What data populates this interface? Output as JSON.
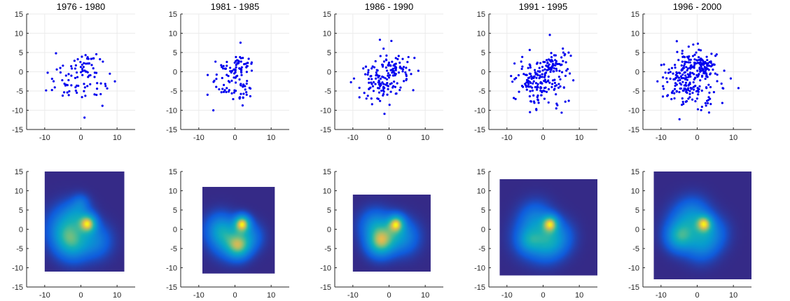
{
  "figure": {
    "colors": {
      "points": "#0000ee",
      "axis": "#262626",
      "grid": "#ebebeb",
      "density_low": "#352a87",
      "density_high": "#f9fb0e"
    }
  },
  "chart_data": [
    {
      "type": "scatter",
      "title": "1976 - 1980",
      "xlim": [
        -15,
        15
      ],
      "ylim": [
        -15,
        15
      ],
      "xticks": [
        "-10",
        "0",
        "10"
      ],
      "yticks": [
        "15",
        "10",
        "5",
        "0",
        "-5",
        "-10",
        "-15"
      ],
      "grid": true,
      "n_points": 95,
      "centers": [
        [
          2,
          1.5,
          1.5,
          0.25
        ],
        [
          -3,
          -2,
          3,
          0.35
        ],
        [
          1,
          -3,
          3,
          0.3
        ],
        [
          7,
          -2,
          1.5,
          0.1
        ]
      ],
      "seed": 11
    },
    {
      "type": "scatter",
      "title": "1981 - 1985",
      "xlim": [
        -15,
        15
      ],
      "ylim": [
        -15,
        15
      ],
      "xticks": [
        "-10",
        "0",
        "10"
      ],
      "yticks": [
        "15",
        "10",
        "5",
        "0",
        "-5",
        "-10",
        "-15"
      ],
      "grid": true,
      "n_points": 115,
      "centers": [
        [
          2,
          1.5,
          1.3,
          0.25
        ],
        [
          -2,
          -3,
          2.6,
          0.4
        ],
        [
          2,
          -4.5,
          1.5,
          0.2
        ],
        [
          -1,
          1,
          2,
          0.15
        ]
      ],
      "seed": 23
    },
    {
      "type": "scatter",
      "title": "1986 - 1990",
      "xlim": [
        -15,
        15
      ],
      "ylim": [
        -15,
        15
      ],
      "xticks": [
        "-10",
        "0",
        "10"
      ],
      "yticks": [
        "15",
        "10",
        "5",
        "0",
        "-5",
        "-10",
        "-15"
      ],
      "grid": true,
      "n_points": 165,
      "centers": [
        [
          2,
          1.5,
          1.5,
          0.25
        ],
        [
          -3,
          -3,
          2.8,
          0.4
        ],
        [
          1,
          -1,
          3,
          0.35
        ]
      ],
      "seed": 37
    },
    {
      "type": "scatter",
      "title": "1991 - 1995",
      "xlim": [
        -15,
        15
      ],
      "ylim": [
        -15,
        15
      ],
      "xticks": [
        "-10",
        "0",
        "10"
      ],
      "yticks": [
        "15",
        "10",
        "5",
        "0",
        "-5",
        "-10",
        "-15"
      ],
      "grid": true,
      "n_points": 230,
      "centers": [
        [
          2,
          1.5,
          1.3,
          0.2
        ],
        [
          -3,
          -2,
          3,
          0.35
        ],
        [
          1,
          -3,
          3.2,
          0.35
        ],
        [
          4,
          3,
          2,
          0.1
        ]
      ],
      "seed": 41
    },
    {
      "type": "scatter",
      "title": "1996 - 2000",
      "xlim": [
        -15,
        15
      ],
      "ylim": [
        -15,
        15
      ],
      "xticks": [
        "-10",
        "0",
        "10"
      ],
      "yticks": [
        "15",
        "10",
        "5",
        "0",
        "-5",
        "-10",
        "-15"
      ],
      "grid": true,
      "n_points": 290,
      "centers": [
        [
          2,
          1.5,
          1.3,
          0.2
        ],
        [
          -4,
          -2,
          3,
          0.35
        ],
        [
          0,
          -3,
          3.5,
          0.35
        ],
        [
          -2,
          2,
          3,
          0.1
        ]
      ],
      "seed": 53
    },
    {
      "type": "heatmap",
      "title": "",
      "xlim": [
        -15,
        15
      ],
      "ylim": [
        -15,
        15
      ],
      "xticks": [
        "-10",
        "0",
        "10"
      ],
      "yticks": [
        "15",
        "10",
        "5",
        "0",
        "-5",
        "-10",
        "-15"
      ],
      "extent": {
        "x": [
          -10,
          12
        ],
        "y": [
          -11,
          15
        ]
      },
      "blobs": [
        [
          2,
          1.5,
          1.6,
          1.0
        ],
        [
          -4,
          1,
          3.5,
          0.45
        ],
        [
          -2,
          -4,
          3,
          0.5
        ],
        [
          4,
          -3,
          3,
          0.4
        ],
        [
          -1,
          4,
          2.5,
          0.35
        ],
        [
          0,
          7,
          1.5,
          0.2
        ],
        [
          -4,
          -2,
          3,
          0.35
        ]
      ]
    },
    {
      "type": "heatmap",
      "title": "",
      "xlim": [
        -15,
        15
      ],
      "ylim": [
        -15,
        15
      ],
      "xticks": [
        "-10",
        "0",
        "10"
      ],
      "yticks": [
        "15",
        "10",
        "5",
        "0",
        "-5",
        "-10",
        "-15"
      ],
      "extent": {
        "x": [
          -9,
          11
        ],
        "y": [
          -11.5,
          11
        ]
      },
      "blobs": [
        [
          2,
          1.5,
          1.5,
          1.0
        ],
        [
          1,
          -4.5,
          2.2,
          0.7
        ],
        [
          -4,
          0,
          2.8,
          0.45
        ],
        [
          -2,
          -3,
          3,
          0.4
        ],
        [
          4,
          -2,
          2.5,
          0.35
        ]
      ]
    },
    {
      "type": "heatmap",
      "title": "",
      "xlim": [
        -15,
        15
      ],
      "ylim": [
        -15,
        15
      ],
      "xticks": [
        "-10",
        "0",
        "10"
      ],
      "yticks": [
        "15",
        "10",
        "5",
        "0",
        "-5",
        "-10",
        "-15"
      ],
      "extent": {
        "x": [
          -10,
          11.5
        ],
        "y": [
          -11,
          9
        ]
      },
      "blobs": [
        [
          2,
          1.5,
          1.5,
          0.9
        ],
        [
          -2.5,
          -3.5,
          2.5,
          0.85
        ],
        [
          -4,
          1,
          2.8,
          0.45
        ],
        [
          4,
          -2,
          3,
          0.4
        ],
        [
          0,
          -1,
          3,
          0.35
        ]
      ]
    },
    {
      "type": "heatmap",
      "title": "",
      "xlim": [
        -15,
        15
      ],
      "ylim": [
        -15,
        15
      ],
      "xticks": [
        "-10",
        "0",
        "10"
      ],
      "yticks": [
        "15",
        "10",
        "5",
        "0",
        "-5",
        "-10",
        "-15"
      ],
      "extent": {
        "x": [
          -12,
          15
        ],
        "y": [
          -12,
          13
        ]
      },
      "blobs": [
        [
          2,
          1.5,
          1.5,
          1.0
        ],
        [
          -3,
          -2,
          3.5,
          0.45
        ],
        [
          1,
          -4,
          3,
          0.45
        ],
        [
          4,
          -2,
          3,
          0.4
        ],
        [
          -2,
          3,
          3,
          0.35
        ],
        [
          -4,
          -3,
          2,
          0.3
        ]
      ]
    },
    {
      "type": "heatmap",
      "title": "",
      "xlim": [
        -15,
        15
      ],
      "ylim": [
        -15,
        15
      ],
      "xticks": [
        "-10",
        "0",
        "10"
      ],
      "yticks": [
        "15",
        "10",
        "5",
        "0",
        "-5",
        "-10",
        "-15"
      ],
      "extent": {
        "x": [
          -12,
          15
        ],
        "y": [
          -13,
          15
        ]
      },
      "blobs": [
        [
          2,
          1.5,
          1.5,
          0.95
        ],
        [
          -5,
          -2,
          2.5,
          0.7
        ],
        [
          -3,
          1,
          3.5,
          0.45
        ],
        [
          1,
          -4,
          3,
          0.45
        ],
        [
          4,
          -1,
          3,
          0.4
        ],
        [
          -1,
          4,
          3,
          0.35
        ]
      ]
    }
  ]
}
